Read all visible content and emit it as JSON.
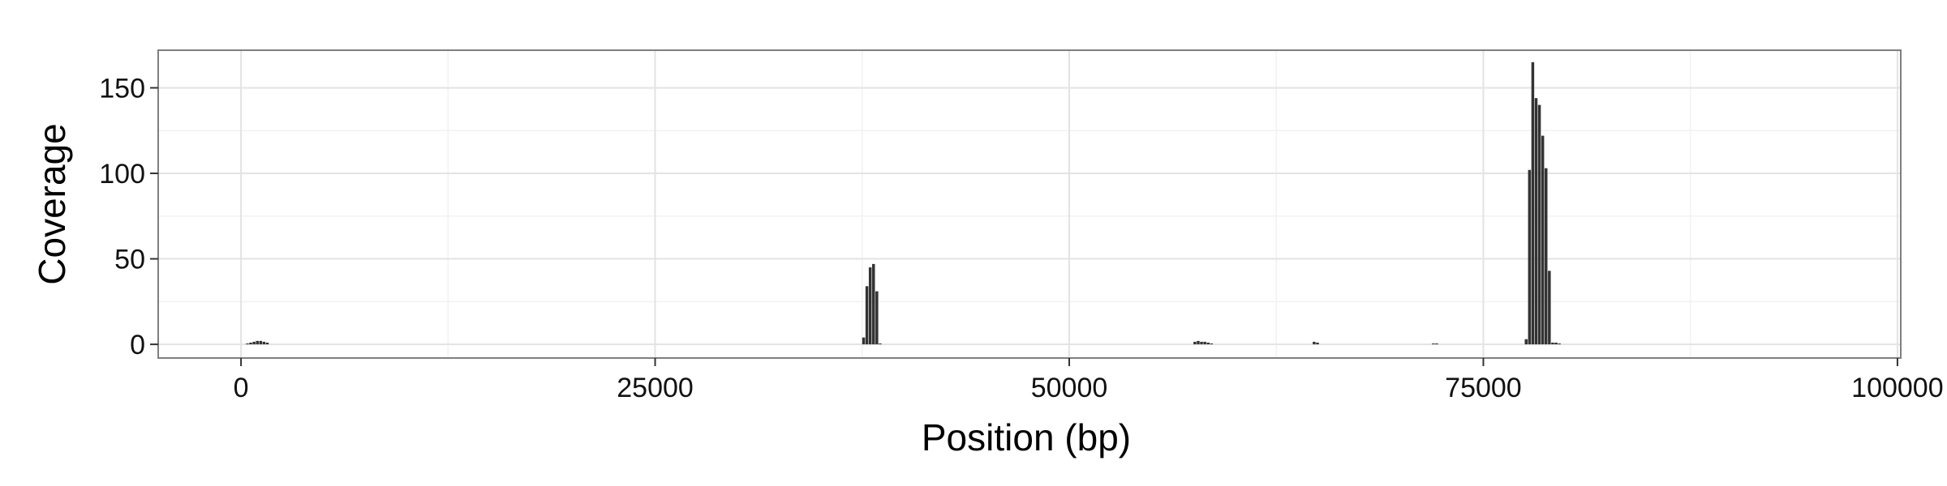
{
  "chart_data": {
    "type": "bar",
    "xlabel": "Position (bp)",
    "ylabel": "Coverage",
    "xlim": [
      -5000,
      100200
    ],
    "ylim": [
      -8,
      172
    ],
    "x_ticks": [
      0,
      25000,
      50000,
      75000,
      100000
    ],
    "x_tick_labels": [
      "0",
      "25000",
      "50000",
      "75000",
      "100000"
    ],
    "y_ticks": [
      0,
      50,
      100,
      150
    ],
    "y_tick_labels": [
      "0",
      "50",
      "100",
      "150"
    ],
    "x_minor_ticks": [
      12500,
      37500,
      62500,
      87500
    ],
    "y_minor_ticks": [
      25,
      75,
      125
    ],
    "grid": true,
    "bar_width": 200,
    "bar_color": "#333333",
    "series": [
      {
        "x": [
          400,
          600,
          800,
          1000,
          1200,
          1400,
          1600,
          37600,
          37800,
          38000,
          38200,
          38400,
          38600,
          57600,
          57800,
          58000,
          58200,
          58400,
          58600,
          64800,
          65000,
          72000,
          72200,
          77600,
          77800,
          78000,
          78200,
          78400,
          78600,
          78800,
          79000,
          79200,
          79400,
          79600
        ],
        "y": [
          0.5,
          1,
          1.5,
          2,
          2,
          1.5,
          1,
          4,
          34,
          45,
          47,
          31,
          0.5,
          1.5,
          2,
          1.5,
          1.5,
          1,
          0.5,
          1.5,
          1,
          0.5,
          0.5,
          3,
          102,
          165,
          144,
          140,
          122,
          103,
          43,
          1,
          1,
          0.5
        ]
      }
    ]
  }
}
